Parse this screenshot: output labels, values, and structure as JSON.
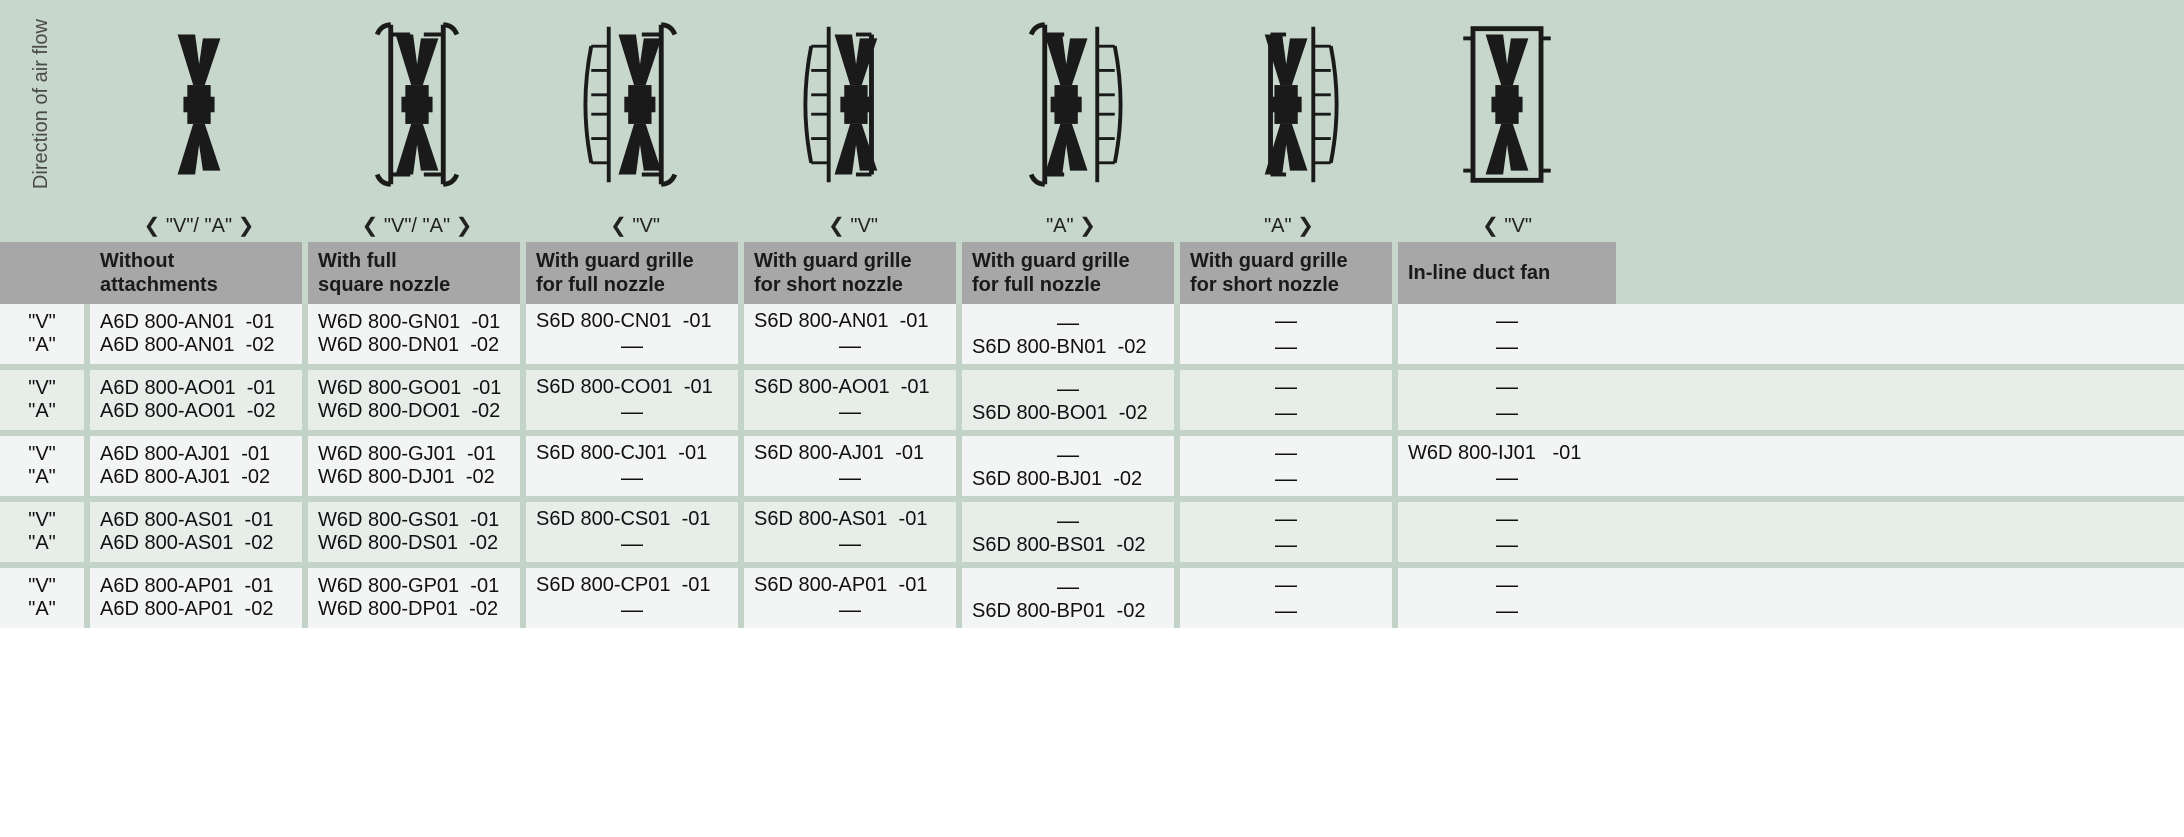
{
  "rotated_label": "Direction of air flow",
  "dir_labels": [
    "❮ \"V\"/ \"A\" ❯",
    "❮ \"V\"/ \"A\" ❯",
    "❮ \"V\"",
    "❮ \"V\"",
    "\"A\" ❯",
    "\"A\" ❯",
    "❮ \"V\""
  ],
  "headers": [
    "Without\nattachments",
    "With full\nsquare nozzle",
    "With guard grille\nfor full nozzle",
    "With guard grille\nfor short nozzle",
    "With guard grille\nfor full nozzle",
    "With guard grille\nfor short nozzle",
    "In-line duct fan"
  ],
  "row_labels": [
    "\"V\"",
    "\"A\""
  ],
  "groups": [
    {
      "bg": "bg-even",
      "rows": [
        [
          "A6D 800-AN01  -01",
          "W6D 800-GN01  -01",
          "S6D 800-CN01  -01",
          "S6D 800-AN01  -01",
          "—",
          "—",
          "—"
        ],
        [
          "A6D 800-AN01  -02",
          "W6D 800-DN01  -02",
          "—",
          "—",
          "S6D 800-BN01  -02",
          "—",
          "—"
        ]
      ]
    },
    {
      "bg": "bg-odd",
      "rows": [
        [
          "A6D 800-AO01  -01",
          "W6D 800-GO01  -01",
          "S6D 800-CO01  -01",
          "S6D 800-AO01  -01",
          "—",
          "—",
          "—"
        ],
        [
          "A6D 800-AO01  -02",
          "W6D 800-DO01  -02",
          "—",
          "—",
          "S6D 800-BO01  -02",
          "—",
          "—"
        ]
      ]
    },
    {
      "bg": "bg-even",
      "rows": [
        [
          "A6D 800-AJ01  -01",
          "W6D 800-GJ01  -01",
          "S6D 800-CJ01  -01",
          "S6D 800-AJ01  -01",
          "—",
          "—",
          "W6D 800-IJ01   -01"
        ],
        [
          "A6D 800-AJ01  -02",
          "W6D 800-DJ01  -02",
          "—",
          "—",
          "S6D 800-BJ01  -02",
          "—",
          "—"
        ]
      ]
    },
    {
      "bg": "bg-odd",
      "rows": [
        [
          "A6D 800-AS01  -01",
          "W6D 800-GS01  -01",
          "S6D 800-CS01  -01",
          "S6D 800-AS01  -01",
          "—",
          "—",
          "—"
        ],
        [
          "A6D 800-AS01  -02",
          "W6D 800-DS01  -02",
          "—",
          "—",
          "S6D 800-BS01  -02",
          "—",
          "—"
        ]
      ]
    },
    {
      "bg": "bg-even",
      "rows": [
        [
          "A6D 800-AP01  -01",
          "W6D 800-GP01  -01",
          "S6D 800-CP01  -01",
          "S6D 800-AP01  -01",
          "—",
          "—",
          "—"
        ],
        [
          "A6D 800-AP01  -02",
          "W6D 800-DP01  -02",
          "—",
          "—",
          "S6D 800-BP01  -02",
          "—",
          "—"
        ]
      ]
    }
  ],
  "icon_types": [
    "bare",
    "full-nozzle",
    "grille-full-v",
    "grille-short-v",
    "grille-full-a",
    "grille-short-a",
    "duct"
  ],
  "colors": {
    "page_bg": "#ffffff",
    "band_bg": "#c8d7cc",
    "header_bg": "#a7a7a7",
    "row_even": "#f2f5f3",
    "row_odd": "#e7ede8",
    "sep": "#c3d3c7",
    "text": "#111111",
    "icon": "#1a1a1a"
  }
}
